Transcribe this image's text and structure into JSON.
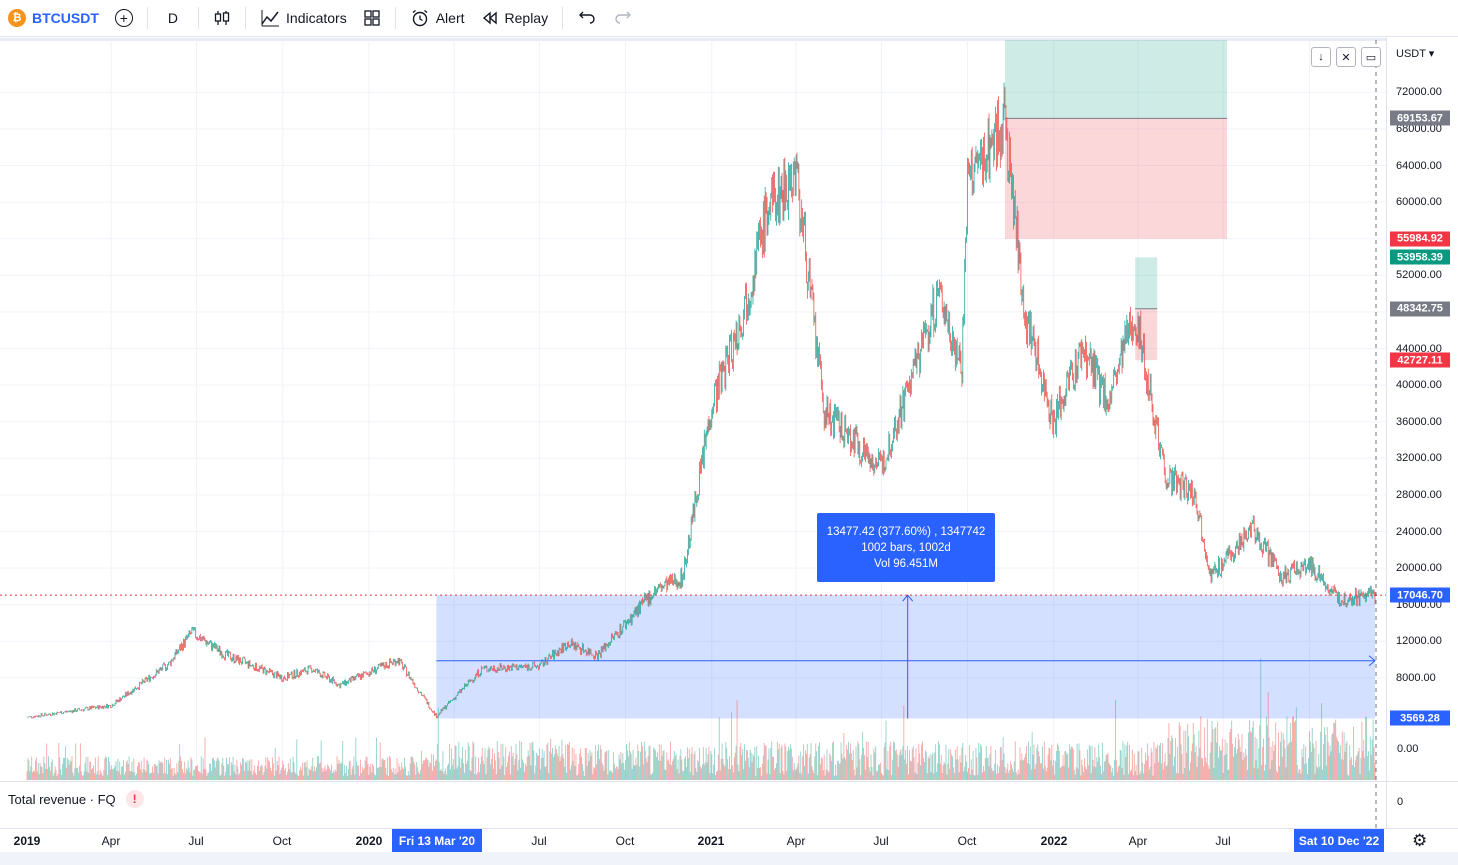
{
  "toolbar": {
    "symbol_logo": "₿",
    "symbol": "BTCUSDT",
    "add_symbol_icon": "plus-circle-icon",
    "interval": "D",
    "chart_type_icon": "candles-icon",
    "indicators_label": "Indicators",
    "layouts_icon": "grid-icon",
    "alert_label": "Alert",
    "replay_label": "Replay",
    "undo_icon": "undo-icon",
    "redo_icon": "redo-icon"
  },
  "price_axis": {
    "currency": "USDT ▾",
    "ticks": [
      "72000.00",
      "68000.00",
      "64000.00",
      "60000.00",
      "56000.00",
      "52000.00",
      "48000.00",
      "44000.00",
      "40000.00",
      "36000.00",
      "32000.00",
      "28000.00",
      "24000.00",
      "20000.00",
      "16000.00",
      "12000.00",
      "8000.00"
    ],
    "tick_values": [
      72000,
      68000,
      64000,
      60000,
      56000,
      52000,
      48000,
      44000,
      40000,
      36000,
      32000,
      28000,
      24000,
      20000,
      16000,
      12000,
      8000
    ],
    "zero_label": "0.00",
    "tags": [
      {
        "label": "69153.67",
        "value": 69153.67,
        "color": "#787b86"
      },
      {
        "label": "55984.92",
        "value": 55984.92,
        "color": "#f23645"
      },
      {
        "label": "53958.39",
        "value": 53958.39,
        "color": "#089981"
      },
      {
        "label": "48342.75",
        "value": 48342.75,
        "color": "#787b86"
      },
      {
        "label": "42727.11",
        "value": 42727.11,
        "color": "#f23645"
      },
      {
        "label": "17046.70",
        "value": 17046.7,
        "color": "#2962ff"
      },
      {
        "label": "3569.28",
        "value": 3569.28,
        "color": "#2962ff"
      }
    ]
  },
  "measure": {
    "line1": "13477.42 (377.60%) , 1347742",
    "line2": "1002 bars, 1002d",
    "line3": "Vol 96.451M"
  },
  "indicator": {
    "label": "Total revenue · FQ",
    "warning": "!",
    "zero": "0"
  },
  "time_axis": {
    "labels": [
      {
        "text": "2019",
        "year": true
      },
      {
        "text": "Apr",
        "year": false
      },
      {
        "text": "Jul",
        "year": false
      },
      {
        "text": "Oct",
        "year": false
      },
      {
        "text": "2020",
        "year": true
      },
      {
        "text": "Jul",
        "year": false
      },
      {
        "text": "Oct",
        "year": false
      },
      {
        "text": "2021",
        "year": true
      },
      {
        "text": "Apr",
        "year": false
      },
      {
        "text": "Jul",
        "year": false
      },
      {
        "text": "Oct",
        "year": false
      },
      {
        "text": "2022",
        "year": true
      },
      {
        "text": "Apr",
        "year": false
      },
      {
        "text": "Jul",
        "year": false
      }
    ],
    "start_tag": "Fri 13 Mar '20",
    "end_tag": "Sat 10 Dec '22"
  },
  "chart_data": {
    "type": "candlestick",
    "symbol": "BTCUSDT",
    "interval": "D",
    "ylim": [
      0,
      76000
    ],
    "colors": {
      "up": "#26a69a",
      "down": "#ef5350",
      "measure": "#2962ff"
    },
    "price_path": [
      [
        "2019-01",
        3700
      ],
      [
        "2019-04",
        5000
      ],
      [
        "2019-06",
        9500
      ],
      [
        "2019-06-26",
        13000
      ],
      [
        "2019-08",
        10500
      ],
      [
        "2019-10",
        8000
      ],
      [
        "2019-11",
        9000
      ],
      [
        "2019-12",
        7200
      ],
      [
        "2020-02",
        10000
      ],
      [
        "2020-03-13",
        3800
      ],
      [
        "2020-05",
        9000
      ],
      [
        "2020-07",
        9300
      ],
      [
        "2020-08",
        11800
      ],
      [
        "2020-09",
        10500
      ],
      [
        "2020-11",
        17500
      ],
      [
        "2020-12",
        19000
      ],
      [
        "2021-01",
        38000
      ],
      [
        "2021-02",
        47000
      ],
      [
        "2021-03",
        59000
      ],
      [
        "2021-04",
        63500
      ],
      [
        "2021-05",
        37000
      ],
      [
        "2021-06",
        34000
      ],
      [
        "2021-07",
        31000
      ],
      [
        "2021-09",
        50000
      ],
      [
        "2021-09-25",
        42000
      ],
      [
        "2021-10",
        62000
      ],
      [
        "2021-11-10",
        69000
      ],
      [
        "2021-12",
        48000
      ],
      [
        "2022-01",
        36000
      ],
      [
        "2022-02",
        44000
      ],
      [
        "2022-03",
        38000
      ],
      [
        "2022-03-29",
        48000
      ],
      [
        "2022-05",
        30000
      ],
      [
        "2022-06",
        28000
      ],
      [
        "2022-06-18",
        19000
      ],
      [
        "2022-08",
        24500
      ],
      [
        "2022-09",
        19000
      ],
      [
        "2022-10",
        20500
      ],
      [
        "2022-11",
        16500
      ],
      [
        "2022-12-10",
        17046.7
      ]
    ],
    "positions": [
      {
        "kind": "short",
        "entry": 69153.67,
        "target": 55984.92
      },
      {
        "kind": "short",
        "entry": 48342.75,
        "target": 42727.11
      }
    ],
    "date_range_measure": {
      "from": "2020-03-13",
      "to": "2022-12-10",
      "low": 3569.28,
      "high": 17046.7,
      "change": 13477.42,
      "percent": 377.6,
      "bars": 1002,
      "volume": "96.451M"
    },
    "last_price": 17046.7
  }
}
